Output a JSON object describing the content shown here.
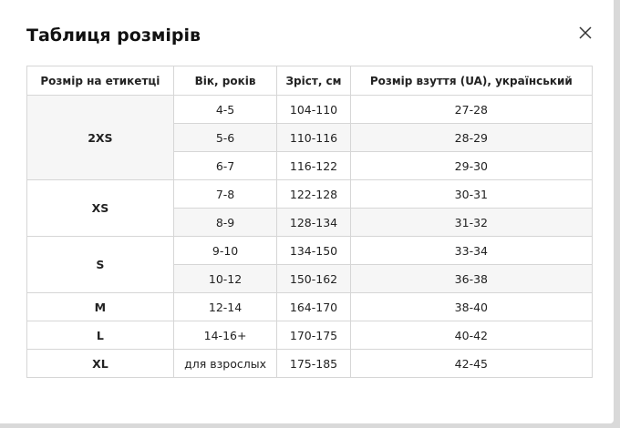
{
  "title": "Таблиця розмірів",
  "table": {
    "headers": [
      "Розмір на етикетці",
      "Вік, років",
      "Зріст, см",
      "Розмір взуття (UA), український"
    ],
    "groups": [
      {
        "size": "2XS",
        "rows": [
          [
            "4-5",
            "104-110",
            "27-28"
          ],
          [
            "5-6",
            "110-116",
            "28-29"
          ],
          [
            "6-7",
            "116-122",
            "29-30"
          ]
        ]
      },
      {
        "size": "XS",
        "rows": [
          [
            "7-8",
            "122-128",
            "30-31"
          ],
          [
            "8-9",
            "128-134",
            "31-32"
          ]
        ]
      },
      {
        "size": "S",
        "rows": [
          [
            "9-10",
            "134-150",
            "33-34"
          ],
          [
            "10-12",
            "150-162",
            "36-38"
          ]
        ]
      },
      {
        "size": "M",
        "rows": [
          [
            "12-14",
            "164-170",
            "38-40"
          ]
        ]
      },
      {
        "size": "L",
        "rows": [
          [
            "14-16+",
            "170-175",
            "40-42"
          ]
        ]
      },
      {
        "size": "XL",
        "rows": [
          [
            "для взрослых",
            "175-185",
            "42-45"
          ]
        ]
      }
    ]
  }
}
